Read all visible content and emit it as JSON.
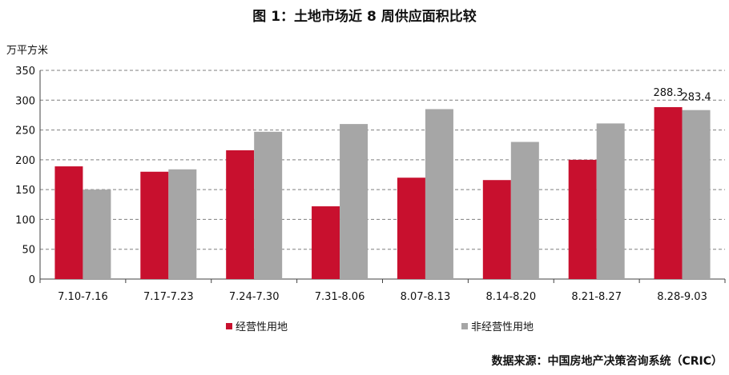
{
  "title": "图 1：土地市场近 8 周供应面积比较",
  "unit_label": "万平方米",
  "source": "数据来源：中国房地产决策咨询系统（CRIC）",
  "colors": {
    "series1": "#c8102e",
    "series2": "#a6a6a6"
  },
  "chart_data": {
    "type": "bar",
    "title": "图 1：土地市场近 8 周供应面积比较",
    "ylabel": "万平方米",
    "xlabel": "",
    "ylim": [
      0,
      350
    ],
    "yticks": [
      0,
      50,
      100,
      150,
      200,
      250,
      300,
      350
    ],
    "grid": true,
    "legend_position": "bottom",
    "categories": [
      "7.10-7.16",
      "7.17-7.23",
      "7.24-7.30",
      "7.31-8.06",
      "8.07-8.13",
      "8.14-8.20",
      "8.21-8.27",
      "8.28-9.03"
    ],
    "series": [
      {
        "name": "经营性用地",
        "values": [
          189,
          180,
          216,
          122,
          170,
          166,
          200,
          288.3
        ]
      },
      {
        "name": "非经营性用地",
        "values": [
          150,
          184,
          247,
          260,
          285,
          230,
          261,
          283.4
        ]
      }
    ],
    "data_labels": [
      {
        "series": 0,
        "index": 7,
        "text": "288.3"
      },
      {
        "series": 1,
        "index": 7,
        "text": "283.4"
      }
    ]
  }
}
